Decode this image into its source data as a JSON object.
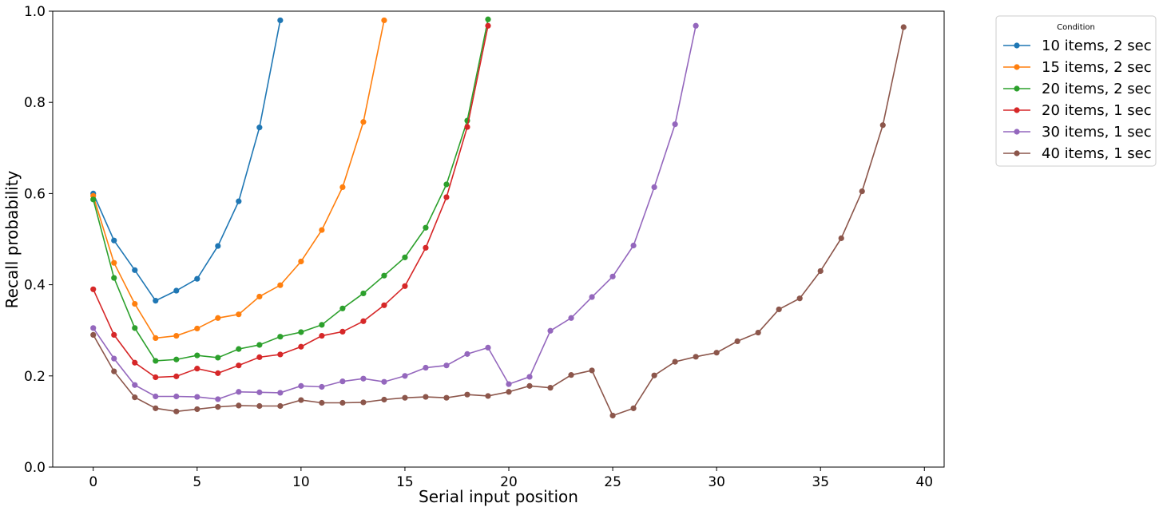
{
  "chart_data": {
    "type": "line",
    "title": "",
    "xlabel": "Serial input position",
    "ylabel": "Recall probability",
    "xlim": [
      -1.95,
      40.95
    ],
    "ylim": [
      0.0,
      1.0
    ],
    "xticks": [
      0,
      5,
      10,
      15,
      20,
      25,
      30,
      35,
      40
    ],
    "yticks": [
      0.0,
      0.2,
      0.4,
      0.6,
      0.8,
      1.0
    ],
    "xtick_labels": [
      "0",
      "5",
      "10",
      "15",
      "20",
      "25",
      "30",
      "35",
      "40"
    ],
    "ytick_labels": [
      "0.0",
      "0.2",
      "0.4",
      "0.6",
      "0.8",
      "1.0"
    ],
    "grid": false,
    "legend": {
      "title": "Condition",
      "placement": "outside-top-right"
    },
    "series": [
      {
        "name": "10 items, 2 sec",
        "color": "#1f77b4",
        "values": [
          0.6,
          0.497,
          0.432,
          0.365,
          0.387,
          0.413,
          0.485,
          0.583,
          0.745,
          0.98
        ]
      },
      {
        "name": "15 items, 2 sec",
        "color": "#ff7f0e",
        "values": [
          0.595,
          0.448,
          0.358,
          0.283,
          0.288,
          0.304,
          0.327,
          0.335,
          0.374,
          0.399,
          0.451,
          0.52,
          0.614,
          0.757,
          0.98
        ]
      },
      {
        "name": "20 items, 2 sec",
        "color": "#2ca02c",
        "values": [
          0.587,
          0.415,
          0.305,
          0.233,
          0.236,
          0.245,
          0.24,
          0.259,
          0.268,
          0.286,
          0.296,
          0.312,
          0.348,
          0.381,
          0.42,
          0.46,
          0.525,
          0.62,
          0.76,
          0.982
        ]
      },
      {
        "name": "20 items, 1 sec",
        "color": "#d62728",
        "values": [
          0.39,
          0.29,
          0.229,
          0.197,
          0.199,
          0.216,
          0.206,
          0.223,
          0.241,
          0.247,
          0.264,
          0.288,
          0.297,
          0.32,
          0.355,
          0.397,
          0.481,
          0.592,
          0.746,
          0.968
        ]
      },
      {
        "name": "30 items, 1 sec",
        "color": "#9467bd",
        "values": [
          0.305,
          0.238,
          0.18,
          0.155,
          0.155,
          0.154,
          0.149,
          0.165,
          0.164,
          0.163,
          0.178,
          0.176,
          0.188,
          0.194,
          0.187,
          0.2,
          0.218,
          0.223,
          0.248,
          0.262,
          0.182,
          0.198,
          0.299,
          0.327,
          0.373,
          0.418,
          0.486,
          0.614,
          0.752,
          0.968
        ]
      },
      {
        "name": "40 items, 1 sec",
        "color": "#8c564b",
        "values": [
          0.29,
          0.21,
          0.153,
          0.129,
          0.122,
          0.127,
          0.132,
          0.135,
          0.134,
          0.134,
          0.147,
          0.141,
          0.141,
          0.142,
          0.148,
          0.152,
          0.154,
          0.152,
          0.159,
          0.156,
          0.165,
          0.178,
          0.174,
          0.202,
          0.212,
          0.113,
          0.129,
          0.201,
          0.231,
          0.242,
          0.251,
          0.276,
          0.295,
          0.346,
          0.37,
          0.43,
          0.502,
          0.605,
          0.75,
          0.965
        ]
      }
    ]
  }
}
